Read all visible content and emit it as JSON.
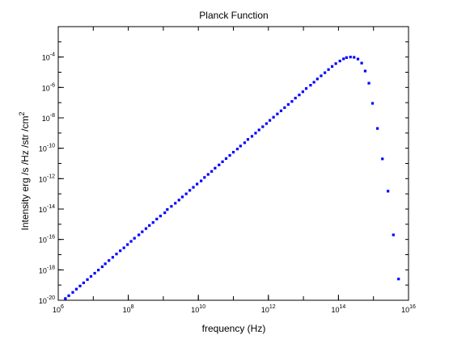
{
  "chart_data": {
    "type": "scatter",
    "title": "Planck Function",
    "xlabel": "frequency (Hz)",
    "ylabel_main": "Intensity erg /s /Hz /str /cm",
    "ylabel_sup": "2",
    "x_scale": "log",
    "y_scale": "log",
    "grid": false,
    "xlim": [
      1000000,
      10000000000000000
    ],
    "ylim": [
      1e-20,
      0.01
    ],
    "x_ticks": [
      {
        "base": "10",
        "exp": "6",
        "value": 1000000
      },
      {
        "base": "10",
        "exp": "8",
        "value": 100000000
      },
      {
        "base": "10",
        "exp": "10",
        "value": 10000000000
      },
      {
        "base": "10",
        "exp": "12",
        "value": 1000000000000
      },
      {
        "base": "10",
        "exp": "14",
        "value": 100000000000000
      },
      {
        "base": "10",
        "exp": "16",
        "value": 10000000000000000
      }
    ],
    "y_ticks": [
      {
        "base": "10",
        "exp": "-20",
        "value": 1e-20
      },
      {
        "base": "10",
        "exp": "-18",
        "value": 1e-18
      },
      {
        "base": "10",
        "exp": "-16",
        "value": 1e-16
      },
      {
        "base": "10",
        "exp": "-14",
        "value": 1e-14
      },
      {
        "base": "10",
        "exp": "-12",
        "value": 1e-12
      },
      {
        "base": "10",
        "exp": "-10",
        "value": 1e-10
      },
      {
        "base": "10",
        "exp": "-8",
        "value": 1e-08
      },
      {
        "base": "10",
        "exp": "-6",
        "value": 1e-06
      },
      {
        "base": "10",
        "exp": "-4",
        "value": 0.0001
      }
    ],
    "marker_color": "#0000ff",
    "series": [
      {
        "x": [
          1600000.0,
          2000000.0,
          2600000.0,
          3300000.0,
          4200000.0,
          5300000.0,
          6800000.0,
          8600000.0,
          11000000.0,
          14000000.0,
          18000000.0,
          22000000.0,
          28000000.0,
          36000000.0,
          46000000.0,
          59000000.0,
          75000000.0,
          95000000.0,
          120000000.0,
          150000000.0,
          200000000.0,
          250000000.0,
          320000000.0,
          400000000.0,
          510000000.0,
          650000000.0,
          830000000.0,
          1100000000.0,
          1300000000.0,
          1700000000.0,
          2200000000.0,
          2800000000.0,
          3500000000.0,
          4500000000.0,
          5700000000.0,
          7200000000.0,
          9200000000.0,
          12000000000.0,
          15000000000.0,
          19000000000.0,
          24000000000.0,
          30000000000.0,
          39000000000.0,
          49000000000.0,
          62000000000.0,
          79000000000.0,
          100000000000.0,
          130000000000.0,
          160000000000.0,
          210000000000.0,
          260000000000.0,
          340000000000.0,
          430000000000.0,
          540000000000.0,
          690000000000.0,
          880000000000.0,
          1100000000000.0,
          1400000000000.0,
          1800000000000.0,
          2300000000000.0,
          2900000000000.0,
          3700000000000.0,
          4700000000000.0,
          5900000000000.0,
          7600000000000.0,
          9600000000000.0,
          12000000000000.0,
          16000000000000.0,
          20000000000000.0,
          25000000000000.0,
          32000000000000.0,
          41000000000000.0,
          52000000000000.0,
          66000000000000.0,
          84000000000000.0,
          110000000000000.0,
          140000000000000.0,
          170000000000000.0,
          220000000000000.0,
          280000000000000.0,
          360000000000000.0,
          460000000000000.0,
          580000000000000.0,
          740000000000000.0,
          940000000000000.0,
          1300000000000000.0,
          1800000000000000.0,
          2600000000000000.0,
          3700000000000000.0,
          5200000000000000.0
        ],
        "y": [
          1.3e-20,
          2e-20,
          3.3e-20,
          5.4e-20,
          8.7e-20,
          1.4e-19,
          2.3e-19,
          3.7e-19,
          6e-19,
          9.7e-19,
          1.6e-18,
          2.5e-18,
          4.1e-18,
          6.7e-18,
          1.1e-17,
          1.8e-17,
          2.8e-17,
          4.6e-17,
          7.5e-17,
          1.2e-16,
          2e-16,
          3.2e-16,
          5.2e-16,
          8.3e-16,
          1.3e-15,
          2.2e-15,
          3.5e-15,
          5.7e-15,
          9.3e-15,
          1.5e-14,
          2.4e-14,
          3.9e-14,
          6.3e-14,
          1e-13,
          1.7e-13,
          2.7e-13,
          4.4e-13,
          7.1e-13,
          1.2e-12,
          1.9e-12,
          3e-12,
          4.9e-12,
          8e-12,
          1.3e-11,
          2.1e-11,
          3.4e-11,
          5.5e-11,
          8.9e-11,
          1.4e-10,
          2.3e-10,
          3.8e-10,
          6.1e-10,
          9.9e-10,
          1.6e-09,
          2.6e-09,
          4.2e-09,
          6.8e-09,
          1.1e-08,
          1.8e-08,
          2.9e-08,
          4.7e-08,
          7.6e-08,
          1.2e-07,
          2e-07,
          3.2e-07,
          5.2e-07,
          8.5e-07,
          1.4e-06,
          2.2e-06,
          3.6e-06,
          5.8e-06,
          9.3e-06,
          1.5e-05,
          2.4e-05,
          3.7e-05,
          5.5e-05,
          7.6e-05,
          9.2e-05,
          0.0001,
          9.6e-05,
          7.4e-05,
          4e-05,
          1.2e-05,
          1.9e-06,
          9e-08,
          2e-09,
          2e-11,
          1.5e-13,
          2e-16,
          2.5e-19
        ]
      }
    ]
  }
}
